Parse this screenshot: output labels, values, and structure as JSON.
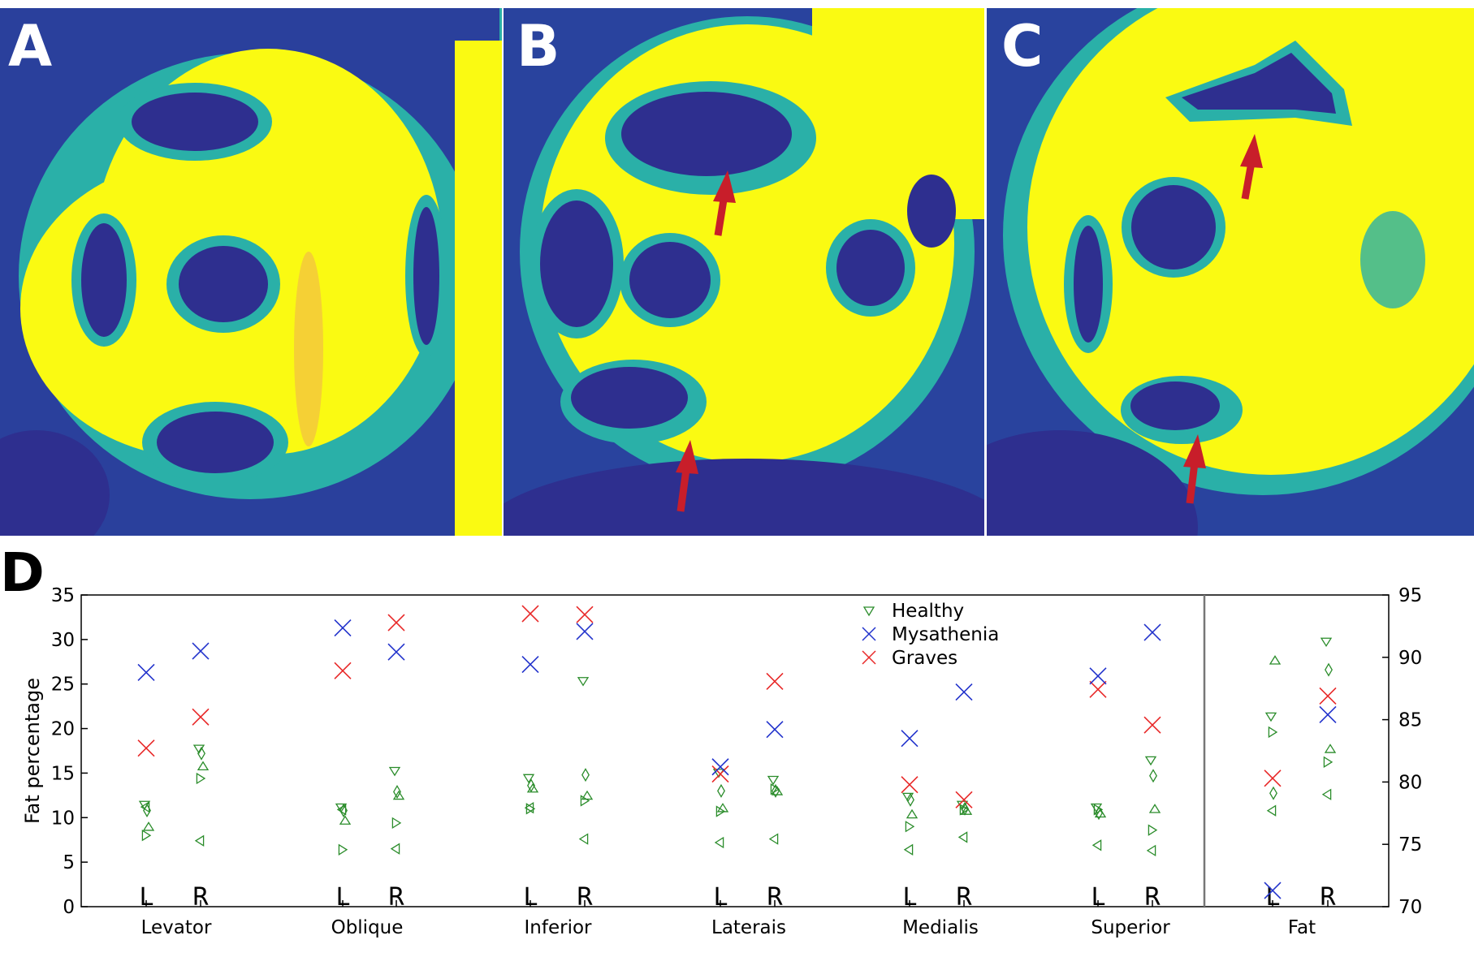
{
  "colors": {
    "dark": "#2e2f8f",
    "blue": "#1e74c4",
    "teal": "#2ab0a8",
    "yellow": "#fafa12",
    "orange": "#f2be44",
    "arrow": "#c81e2a",
    "healthy": "#2a8c2a",
    "mysathenia": "#2233cc",
    "graves": "#e82828"
  },
  "panels": [
    {
      "label": "A"
    },
    {
      "label": "B"
    },
    {
      "label": "C"
    },
    {
      "label": "D"
    }
  ],
  "chart_data": {
    "type": "scatter",
    "ylabel": "Fat percentage",
    "ylim": [
      0,
      35
    ],
    "y_ticks": [
      "0",
      "5",
      "10",
      "15",
      "20",
      "25",
      "30",
      "35"
    ],
    "y2lim": [
      70,
      95
    ],
    "y2_ticks": [
      "70",
      "75",
      "80",
      "85",
      "90",
      "95"
    ],
    "grid": false,
    "legend_placement": "top-center",
    "categories": [
      "Levator",
      "Oblique",
      "Inferior",
      "Laterais",
      "Medialis",
      "Superior",
      "Fat"
    ],
    "side_labels": [
      "L",
      "R"
    ],
    "series": [
      {
        "name": "Healthy",
        "markers": [
          "▿",
          "◇",
          "△",
          "▷",
          "◁"
        ],
        "values": [
          [
            [
              11.5,
              10.8,
              8.9,
              8.0,
              11.2
            ],
            [
              17.8,
              17.2,
              15.7,
              14.4,
              7.4
            ]
          ],
          [
            [
              11.2,
              10.8,
              9.6,
              6.4,
              10.9
            ],
            [
              15.3,
              12.9,
              12.4,
              9.4,
              6.5
            ]
          ],
          [
            [
              14.5,
              13.6,
              13.2,
              11.0,
              11.1
            ],
            [
              25.4,
              14.8,
              12.4,
              11.9,
              7.6
            ]
          ],
          [
            [
              15.1,
              13.0,
              11.0,
              10.7,
              7.2
            ],
            [
              14.3,
              13.0,
              12.9,
              13.2,
              7.6
            ]
          ],
          [
            [
              12.4,
              12.0,
              10.3,
              9.0,
              6.4
            ],
            [
              11.5,
              11.0,
              10.7,
              10.9,
              7.8
            ]
          ],
          [
            [
              11.2,
              10.5,
              10.4,
              10.9,
              6.9
            ],
            [
              16.5,
              14.7,
              10.9,
              8.6,
              6.3
            ]
          ],
          [
            [
              85.3,
              79.1,
              89.7,
              84.0,
              77.7
            ],
            [
              91.3,
              89.0,
              82.6,
              81.6,
              79.0
            ]
          ]
        ]
      },
      {
        "name": "Mysathenia",
        "values": [
          [
            26.3,
            28.7
          ],
          [
            31.3,
            28.6
          ],
          [
            27.2,
            30.9
          ],
          [
            15.7,
            19.9
          ],
          [
            18.9,
            24.1
          ],
          [
            25.9,
            30.8
          ],
          [
            71.3,
            85.4
          ]
        ]
      },
      {
        "name": "Graves",
        "values": [
          [
            17.8,
            21.3
          ],
          [
            26.5,
            31.9
          ],
          [
            32.9,
            32.8
          ],
          [
            14.9,
            25.3
          ],
          [
            13.7,
            12.0
          ],
          [
            24.4,
            20.4
          ],
          [
            80.3,
            86.9
          ]
        ]
      }
    ]
  }
}
